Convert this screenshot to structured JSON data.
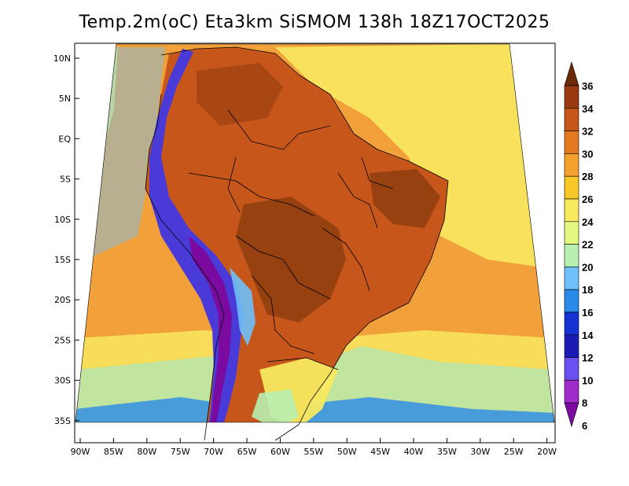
{
  "title": "Temp.2m(oC) Eta3km SiSMOM 138h 18Z17OCT2025",
  "lat_labels": [
    "10N",
    "5N",
    "EQ",
    "5S",
    "10S",
    "15S",
    "20S",
    "25S",
    "30S",
    "35S"
  ],
  "lon_labels": [
    "90W",
    "85W",
    "80W",
    "75W",
    "70W",
    "65W",
    "60W",
    "55W",
    "50W",
    "45W",
    "40W",
    "35W",
    "30W",
    "25W",
    "20W"
  ],
  "colorbar": {
    "levels": [
      "6",
      "8",
      "10",
      "12",
      "14",
      "16",
      "18",
      "20",
      "22",
      "24",
      "26",
      "28",
      "30",
      "32",
      "34",
      "36"
    ],
    "colors": [
      "#7a0aa0",
      "#a02ccc",
      "#6a50f0",
      "#1a1ab4",
      "#1432d2",
      "#2a8ae8",
      "#6ec0f8",
      "#b8f0b0",
      "#e4f880",
      "#f8e860",
      "#f8c828",
      "#f4a22e",
      "#e37a22",
      "#c7561a",
      "#9a3a10",
      "#6b2a08"
    ]
  },
  "map_colors": {
    "ocean": "#f2a13a",
    "land": "#c7561a",
    "hot_core": "#8e3d0f",
    "andes_cold": "#4a3ad8",
    "andes_coldest": "#7a0aa0",
    "coast_cool": "#f8e860",
    "south_cool": "#b8f0b0",
    "outline": "#000000"
  }
}
